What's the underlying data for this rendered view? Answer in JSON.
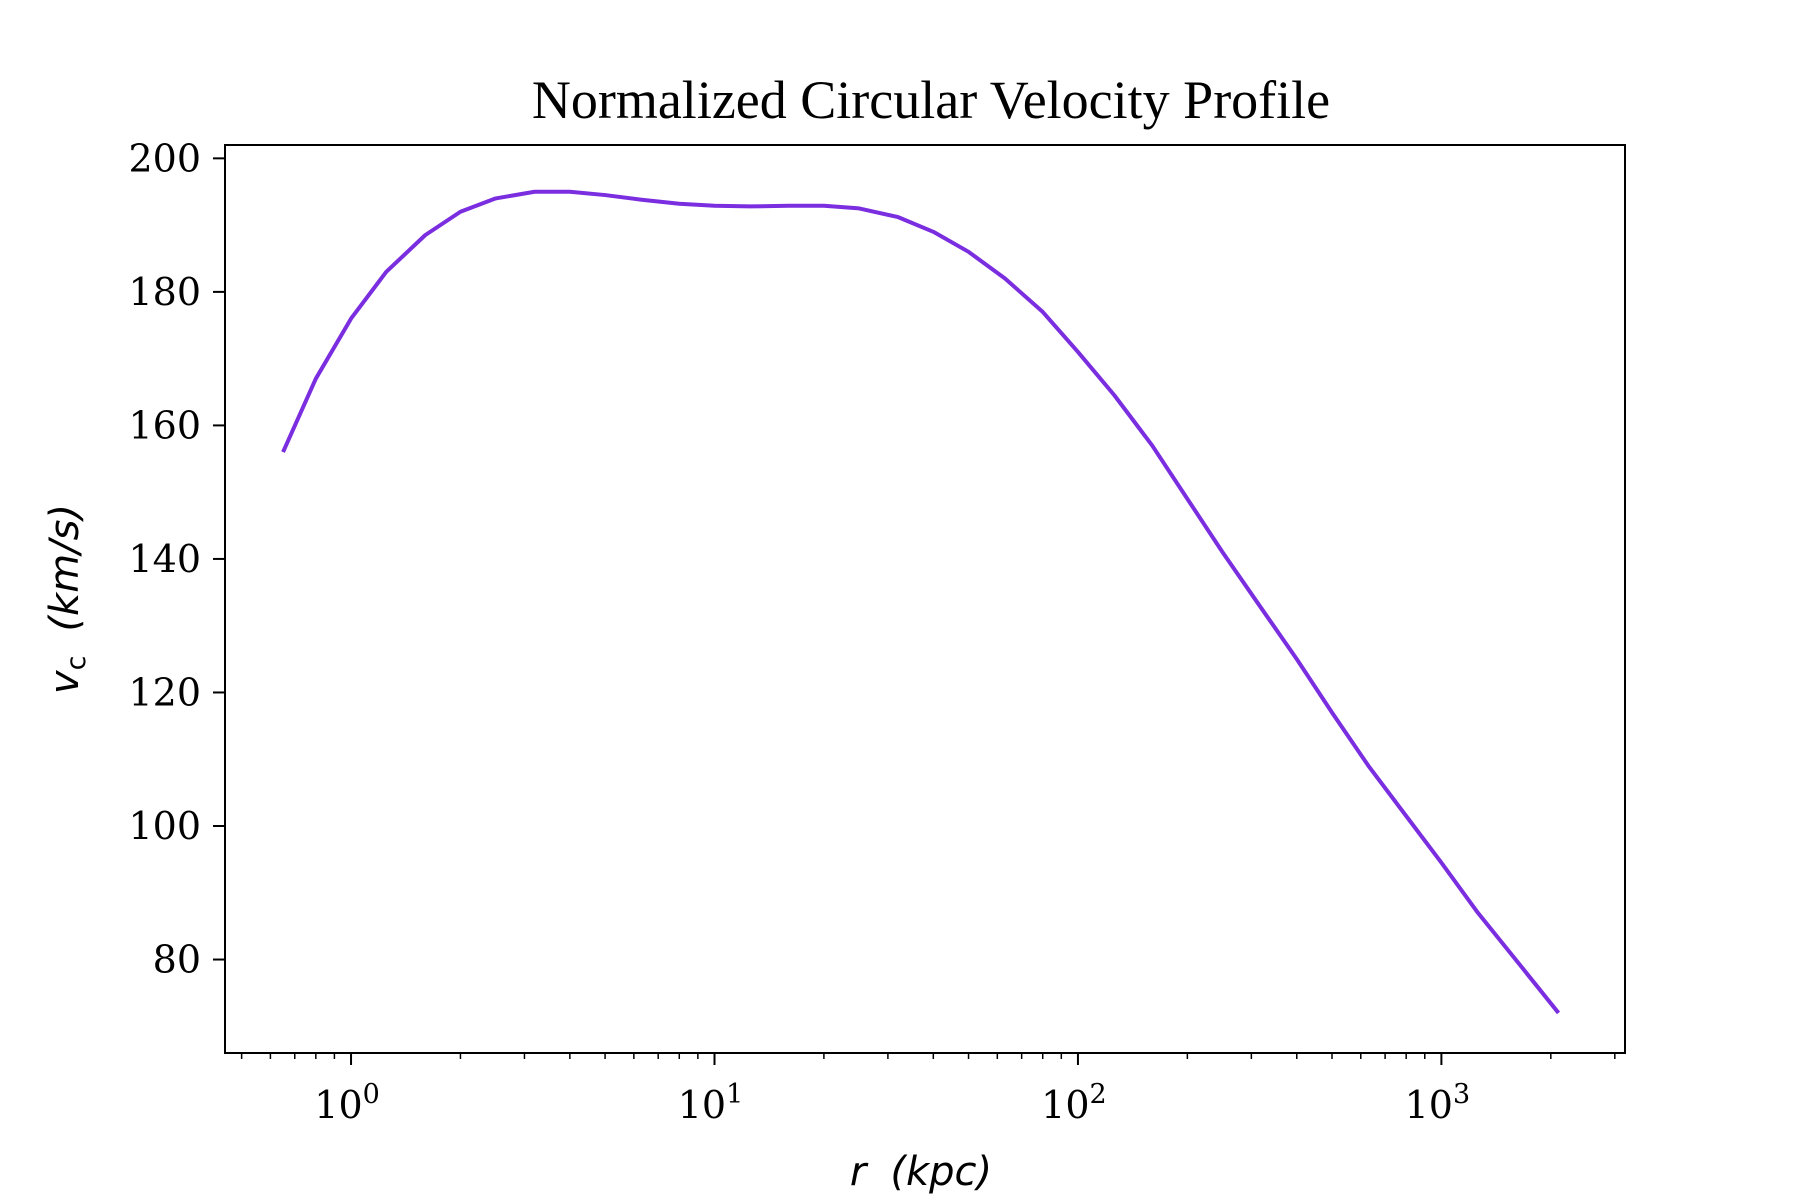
{
  "chart_data": {
    "type": "line",
    "title": "Normalized Circular Velocity Profile",
    "xlabel": {
      "var": "r",
      "unit": "(kpc)"
    },
    "ylabel": {
      "var": "v",
      "sub": "c",
      "unit": "(km/s)"
    },
    "xscale": "log",
    "xlim": [
      0.45,
      3200
    ],
    "ylim": [
      66,
      202
    ],
    "x_ticks": [
      {
        "base": "10",
        "exp": "0",
        "value": 1
      },
      {
        "base": "10",
        "exp": "1",
        "value": 10
      },
      {
        "base": "10",
        "exp": "2",
        "value": 100
      },
      {
        "base": "10",
        "exp": "3",
        "value": 1000
      }
    ],
    "y_ticks": [
      80,
      100,
      120,
      140,
      160,
      180,
      200
    ],
    "grid": false,
    "legend": "none",
    "line_color": "#7a2ee0",
    "series": [
      {
        "x": [
          0.65,
          0.8,
          1.0,
          1.25,
          1.6,
          2.0,
          2.5,
          3.2,
          4.0,
          5.0,
          6.3,
          8.0,
          10,
          12.5,
          16,
          20,
          25,
          32,
          40,
          50,
          63,
          80,
          100,
          126,
          160,
          200,
          250,
          316,
          400,
          500,
          630,
          800,
          1000,
          1260,
          1600,
          2100
        ],
        "y": [
          156,
          167,
          176,
          183,
          188.5,
          192,
          194,
          195,
          195,
          194.5,
          193.8,
          193.2,
          192.9,
          192.8,
          192.9,
          192.9,
          192.5,
          191.2,
          189,
          186,
          182,
          177,
          171,
          164.5,
          157,
          149,
          141,
          133,
          125,
          117,
          109,
          101.5,
          94.5,
          87,
          80,
          72
        ]
      }
    ]
  }
}
